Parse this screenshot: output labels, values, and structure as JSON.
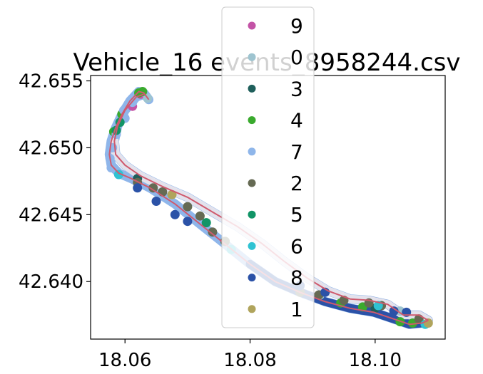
{
  "chart_data": {
    "type": "scatter",
    "title": "Vehicle_16 events_8958244.csv",
    "xlabel": "",
    "ylabel": "",
    "xlim": [
      18.0545,
      18.1112
    ],
    "ylim": [
      42.6357,
      42.6554
    ],
    "x_ticks": [
      "18.06",
      "18.08",
      "18.10"
    ],
    "x_tick_values": [
      18.06,
      18.08,
      18.1
    ],
    "y_ticks": [
      "42.640",
      "42.645",
      "42.650",
      "42.655"
    ],
    "y_tick_values": [
      42.64,
      42.645,
      42.65,
      42.655
    ],
    "grid": false,
    "legend_position": "top-center",
    "route_line_color": "#cf5a6e",
    "track": {
      "outbound": [
        [
          18.0638,
          42.6536
        ],
        [
          18.063,
          42.6541
        ],
        [
          18.0622,
          42.6542
        ],
        [
          18.0608,
          42.6535
        ],
        [
          18.0595,
          42.6525
        ],
        [
          18.0585,
          42.6515
        ],
        [
          18.0578,
          42.6505
        ],
        [
          18.0575,
          42.6495
        ],
        [
          18.0578,
          42.6487
        ],
        [
          18.059,
          42.6481
        ],
        [
          18.061,
          42.6477
        ],
        [
          18.064,
          42.647
        ],
        [
          18.068,
          42.6458
        ],
        [
          18.072,
          42.6443
        ],
        [
          18.076,
          42.6428
        ],
        [
          18.08,
          42.6413
        ],
        [
          18.084,
          42.64
        ],
        [
          18.088,
          42.6392
        ],
        [
          18.092,
          42.6385
        ],
        [
          18.096,
          42.638
        ],
        [
          18.0998,
          42.6377
        ],
        [
          18.103,
          42.6372
        ],
        [
          18.1055,
          42.6368
        ],
        [
          18.1075,
          42.6369
        ],
        [
          18.1085,
          42.6371
        ]
      ],
      "return": [
        [
          18.1085,
          42.6371
        ],
        [
          18.107,
          42.6375
        ],
        [
          18.1045,
          42.6375
        ],
        [
          18.102,
          42.6383
        ],
        [
          18.099,
          42.6386
        ],
        [
          18.096,
          42.6387
        ],
        [
          18.0925,
          42.6393
        ],
        [
          18.089,
          42.6403
        ],
        [
          18.0855,
          42.6415
        ],
        [
          18.082,
          42.6428
        ],
        [
          18.078,
          42.6441
        ],
        [
          18.074,
          42.6452
        ],
        [
          18.07,
          42.6463
        ],
        [
          18.066,
          42.6471
        ],
        [
          18.0625,
          42.6479
        ],
        [
          18.06,
          42.6487
        ],
        [
          18.0585,
          42.6495
        ],
        [
          18.0583,
          42.6505
        ],
        [
          18.0588,
          42.6516
        ],
        [
          18.06,
          42.6528
        ],
        [
          18.0618,
          42.6538
        ],
        [
          18.063,
          42.654
        ]
      ]
    },
    "series": [
      {
        "name": "9",
        "color": "#c353a6",
        "points": [
          [
            18.0625,
            42.654
          ],
          [
            18.0612,
            42.6531
          ]
        ]
      },
      {
        "name": "0",
        "color": "#9ec4d0",
        "points": [
          [
            18.0636,
            42.6537
          ],
          [
            18.104,
            42.6378
          ],
          [
            18.0912,
            42.639
          ]
        ]
      },
      {
        "name": "3",
        "color": "#1f5f5b",
        "points": [
          [
            18.1,
            42.638
          ],
          [
            18.062,
            42.6477
          ]
        ]
      },
      {
        "name": "4",
        "color": "#3aaa2d",
        "points": [
          [
            18.0622,
            42.6541
          ],
          [
            18.0628,
            42.6542
          ],
          [
            18.0595,
            42.6525
          ],
          [
            18.0582,
            42.6512
          ],
          [
            18.106,
            42.6369
          ],
          [
            18.104,
            42.637
          ],
          [
            18.0945,
            42.6384
          ],
          [
            18.098,
            42.6381
          ],
          [
            18.076,
            42.643
          ]
        ]
      },
      {
        "name": "7",
        "color": "#8fb6ea",
        "points": [
          [
            18.058,
            42.65
          ],
          [
            18.0576,
            42.6492
          ],
          [
            18.0586,
            42.651
          ],
          [
            18.06,
            42.6522
          ],
          [
            18.0612,
            42.6534
          ],
          [
            18.0578,
            42.6485
          ],
          [
            18.059,
            42.648
          ],
          [
            18.0598,
            42.6528
          ]
        ]
      },
      {
        "name": "2",
        "color": "#656a53",
        "points": [
          [
            18.0645,
            42.647
          ],
          [
            18.066,
            42.6467
          ],
          [
            18.07,
            42.6456
          ],
          [
            18.072,
            42.6449
          ],
          [
            18.074,
            42.6437
          ],
          [
            18.076,
            42.643
          ],
          [
            18.088,
            42.6392
          ],
          [
            18.091,
            42.639
          ],
          [
            18.095,
            42.6386
          ],
          [
            18.099,
            42.6384
          ],
          [
            18.101,
            42.6382
          ],
          [
            18.062,
            42.6474
          ],
          [
            18.107,
            42.6372
          ]
        ]
      },
      {
        "name": "5",
        "color": "#119466",
        "points": [
          [
            18.0586,
            42.6513
          ],
          [
            18.0592,
            42.6519
          ],
          [
            18.073,
            42.6444
          ]
        ]
      },
      {
        "name": "6",
        "color": "#2fc2d2",
        "points": [
          [
            18.059,
            42.648
          ],
          [
            18.1005,
            42.6382
          ],
          [
            18.108,
            42.6368
          ],
          [
            18.077,
            42.6424
          ]
        ]
      },
      {
        "name": "8",
        "color": "#2b52a7",
        "points": [
          [
            18.062,
            42.647
          ],
          [
            18.065,
            42.646
          ],
          [
            18.068,
            42.645
          ],
          [
            18.07,
            42.6445
          ],
          [
            18.088,
            42.6397
          ],
          [
            18.092,
            42.6392
          ],
          [
            18.103,
            42.6378
          ],
          [
            18.105,
            42.6377
          ]
        ]
      },
      {
        "name": "1",
        "color": "#b0a45c",
        "points": [
          [
            18.1085,
            42.6369
          ],
          [
            18.0675,
            42.6465
          ]
        ]
      }
    ],
    "track_layers": [
      {
        "from": 0.0,
        "to": 0.55,
        "color": "#8fb6ea"
      },
      {
        "from": 0.35,
        "to": 0.62,
        "color": "#2b52a7"
      },
      {
        "from": 0.55,
        "to": 0.9,
        "color": "#e3e2ec"
      }
    ]
  }
}
